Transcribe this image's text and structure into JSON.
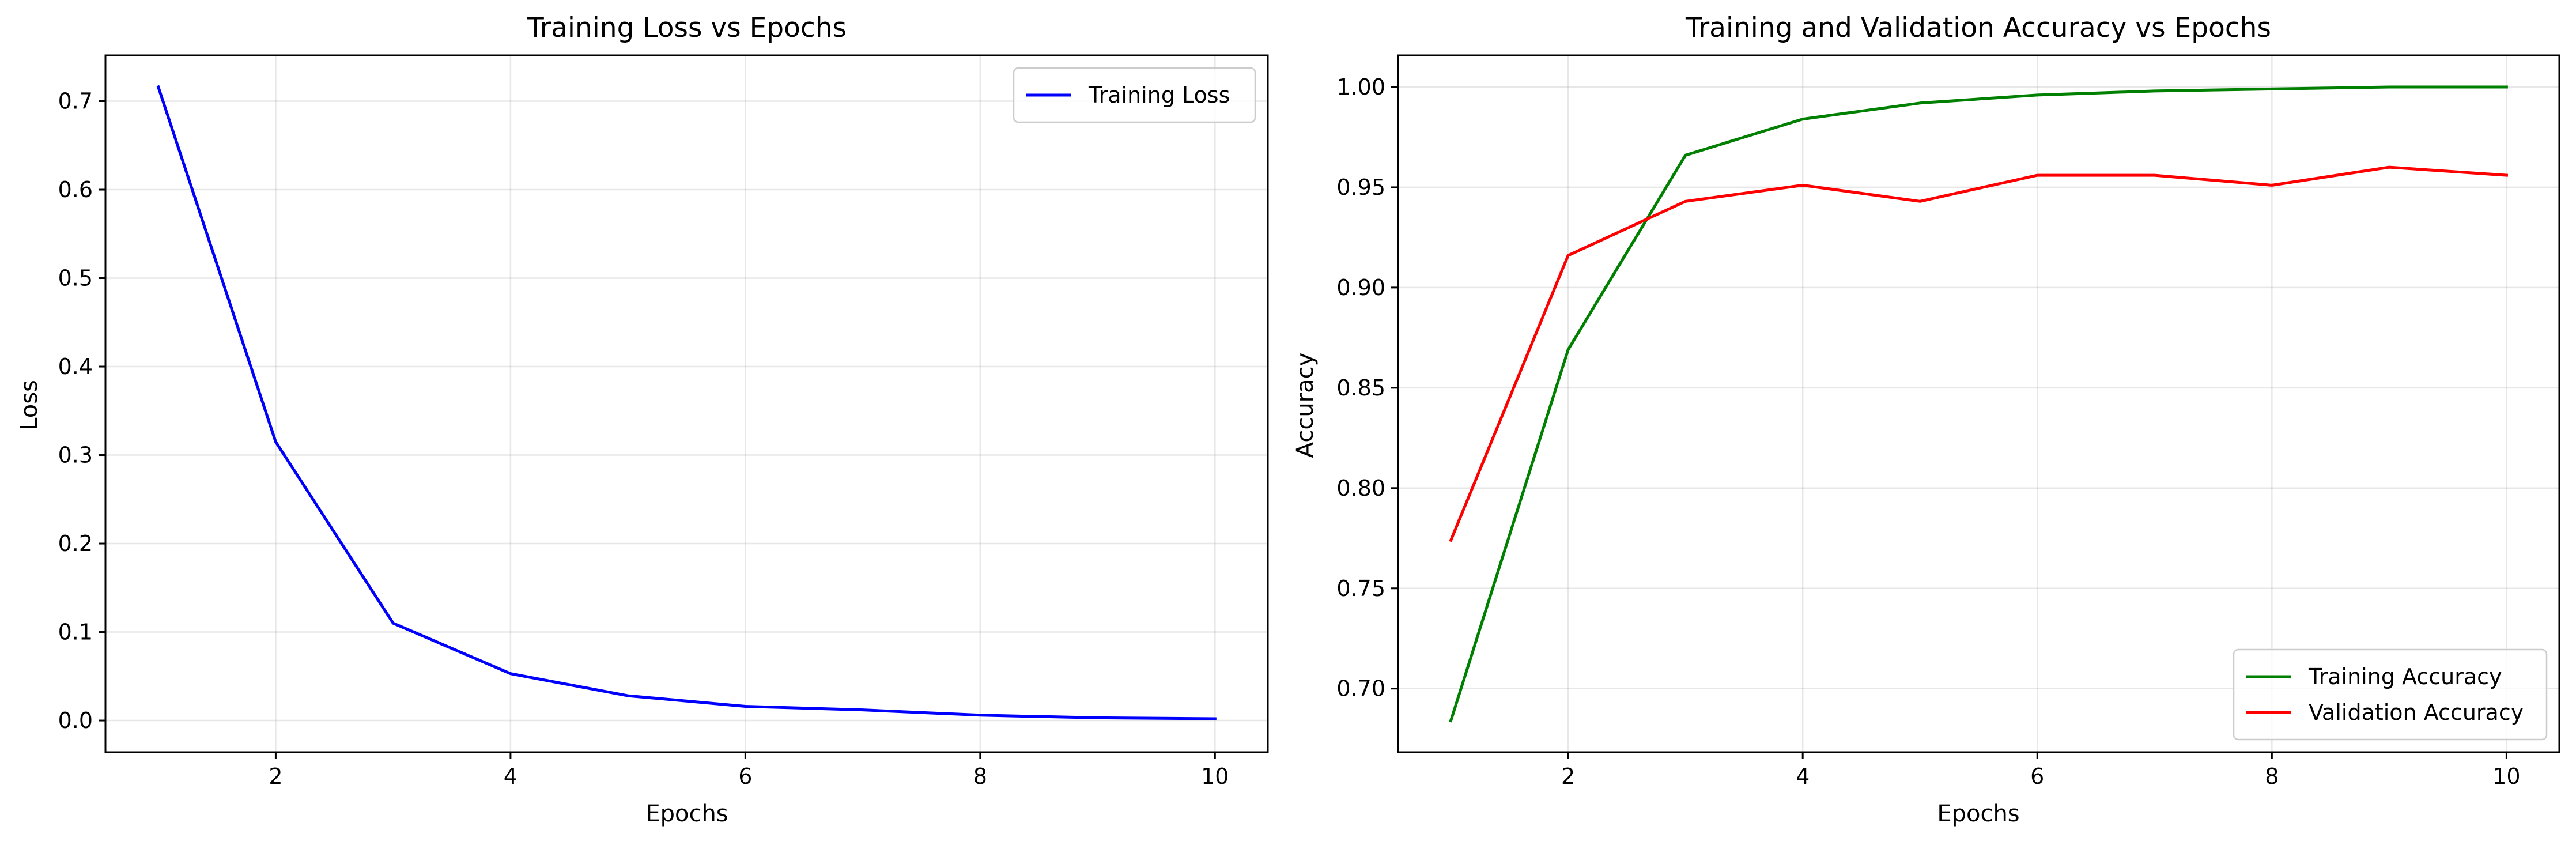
{
  "chart_data": [
    {
      "type": "line",
      "title": "Training Loss vs Epochs",
      "xlabel": "Epochs",
      "ylabel": "Loss",
      "xlim": [
        0.55,
        10.45
      ],
      "ylim": [
        -0.0358,
        0.7518
      ],
      "xticks": [
        2,
        4,
        6,
        8,
        10
      ],
      "yticks": [
        0.0,
        0.1,
        0.2,
        0.3,
        0.4,
        0.5,
        0.6,
        0.7
      ],
      "ytick_decimals": 1,
      "grid": true,
      "legend_position": "top-right",
      "x": [
        1,
        2,
        3,
        4,
        5,
        6,
        7,
        8,
        9,
        10
      ],
      "series": [
        {
          "name": "Training Loss",
          "color": "#0000ff",
          "values": [
            0.716,
            0.315,
            0.11,
            0.053,
            0.028,
            0.016,
            0.012,
            0.006,
            0.003,
            0.002
          ]
        }
      ]
    },
    {
      "type": "line",
      "title": "Training and Validation Accuracy vs Epochs",
      "xlabel": "Epochs",
      "ylabel": "Accuracy",
      "xlim": [
        0.55,
        10.45
      ],
      "ylim": [
        0.6683,
        1.0158
      ],
      "xticks": [
        2,
        4,
        6,
        8,
        10
      ],
      "yticks": [
        0.7,
        0.75,
        0.8,
        0.85,
        0.9,
        0.95,
        1.0
      ],
      "ytick_decimals": 2,
      "grid": true,
      "legend_position": "bottom-right",
      "x": [
        1,
        2,
        3,
        4,
        5,
        6,
        7,
        8,
        9,
        10
      ],
      "series": [
        {
          "name": "Training Accuracy",
          "color": "#008000",
          "values": [
            0.684,
            0.869,
            0.966,
            0.984,
            0.992,
            0.996,
            0.998,
            0.999,
            1.0,
            1.0
          ]
        },
        {
          "name": "Validation Accuracy",
          "color": "#ff0000",
          "values": [
            0.774,
            0.916,
            0.943,
            0.951,
            0.943,
            0.956,
            0.956,
            0.951,
            0.96,
            0.956
          ]
        }
      ]
    }
  ]
}
